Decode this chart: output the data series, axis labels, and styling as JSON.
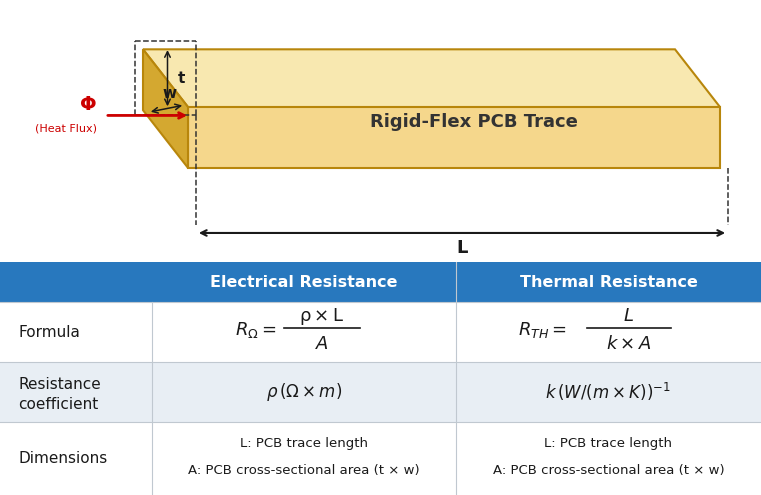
{
  "title": "Rigid-Flex PCB Trace",
  "bg_color": "#ffffff",
  "table_header_bg": "#2878be",
  "col_header_1": "Electrical Resistance",
  "col_header_2": "Thermal Resistance",
  "row_labels": [
    "Formula",
    "Resistance\ncoefficient",
    "Dimensions"
  ],
  "pcb_face_color": "#f5d78c",
  "pcb_top_color": "#f8e8b0",
  "pcb_side_color": "#d4a830",
  "pcb_edge_color": "#b8860b",
  "phi_color": "#cc0000",
  "dim_color": "#1a1a1a",
  "table_alt_bg": "#e8eef4",
  "table_line_color": "#c0c8d0",
  "text_color": "#1a1a1a"
}
